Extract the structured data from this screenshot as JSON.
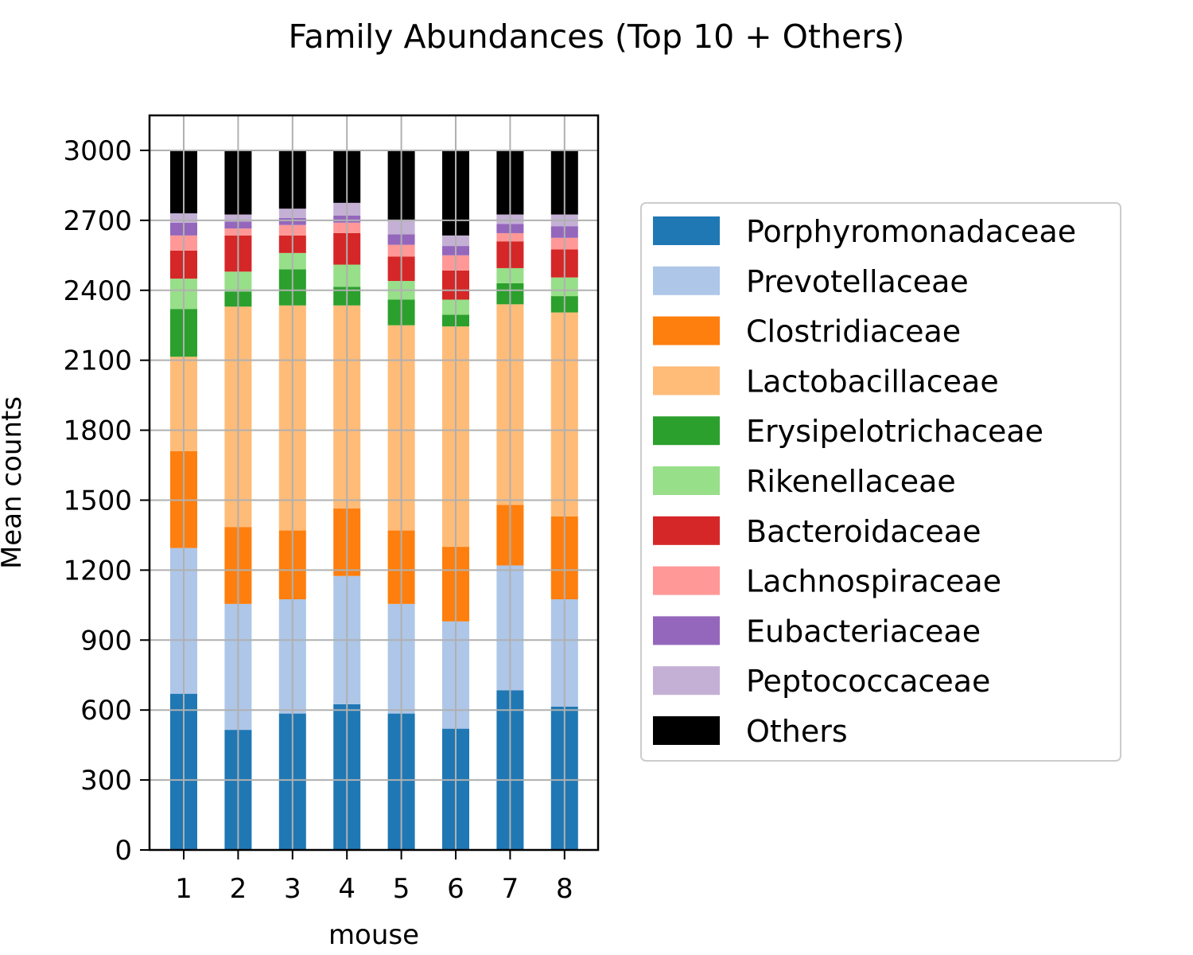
{
  "chart_data": {
    "type": "bar",
    "stacked": true,
    "title": "Family Abundances (Top 10  + Others)",
    "xlabel": "mouse",
    "ylabel": "Mean counts",
    "categories": [
      "1",
      "2",
      "3",
      "4",
      "5",
      "6",
      "7",
      "8"
    ],
    "ylim": [
      0,
      3150
    ],
    "yticks": [
      0,
      300,
      600,
      900,
      1200,
      1500,
      1800,
      2100,
      2400,
      2700,
      3000
    ],
    "grid": true,
    "legend_position": "right",
    "series": [
      {
        "name": "Porphyromonadaceae",
        "color": "#1f77b4",
        "values": [
          670,
          515,
          585,
          625,
          585,
          520,
          685,
          615
        ]
      },
      {
        "name": "Prevotellaceae",
        "color": "#aec7e8",
        "values": [
          625,
          540,
          490,
          550,
          470,
          460,
          535,
          460
        ]
      },
      {
        "name": "Clostridiaceae",
        "color": "#ff7f0e",
        "values": [
          415,
          330,
          295,
          290,
          315,
          320,
          260,
          355
        ]
      },
      {
        "name": "Lactobacillaceae",
        "color": "#ffbb78",
        "values": [
          405,
          945,
          965,
          870,
          880,
          945,
          860,
          875
        ]
      },
      {
        "name": "Erysipelotrichaceae",
        "color": "#2ca02c",
        "values": [
          205,
          65,
          155,
          80,
          110,
          50,
          90,
          70
        ]
      },
      {
        "name": "Rikenellaceae",
        "color": "#98df8a",
        "values": [
          130,
          85,
          70,
          95,
          80,
          65,
          65,
          80
        ]
      },
      {
        "name": "Bacteroidaceae",
        "color": "#d62728",
        "values": [
          120,
          155,
          75,
          135,
          105,
          125,
          115,
          120
        ]
      },
      {
        "name": "Lachnospiraceae",
        "color": "#ff9896",
        "values": [
          65,
          30,
          45,
          45,
          50,
          65,
          35,
          50
        ]
      },
      {
        "name": "Eubacteriaceae",
        "color": "#9467bd",
        "values": [
          55,
          30,
          30,
          30,
          45,
          40,
          40,
          50
        ]
      },
      {
        "name": "Peptococcaceae",
        "color": "#c5b0d5",
        "values": [
          40,
          30,
          40,
          55,
          60,
          45,
          40,
          50
        ]
      },
      {
        "name": "Others",
        "color": "#000000",
        "values": [
          270,
          275,
          250,
          225,
          300,
          365,
          275,
          275
        ]
      }
    ]
  }
}
